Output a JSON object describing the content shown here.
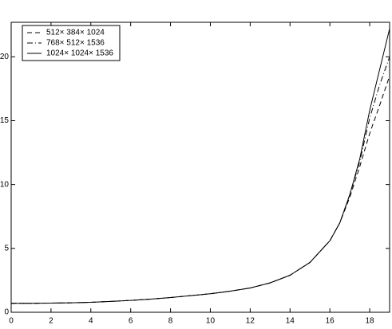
{
  "chart_data": {
    "type": "line",
    "x": [
      0,
      1,
      2,
      3,
      4,
      5,
      6,
      7,
      8,
      9,
      10,
      11,
      12,
      13,
      14,
      15,
      16,
      16.5,
      17,
      17.5,
      18,
      18.5,
      19
    ],
    "series": [
      {
        "name": "512× 384× 1024",
        "color": "#000000",
        "style": "dashed",
        "values": [
          0.7,
          0.7,
          0.72,
          0.74,
          0.78,
          0.85,
          0.93,
          1.03,
          1.15,
          1.3,
          1.45,
          1.65,
          1.9,
          2.3,
          2.9,
          3.9,
          5.6,
          7.0,
          9.0,
          11.4,
          14.0,
          16.2,
          18.5
        ]
      },
      {
        "name": "768× 512× 1536",
        "color": "#000000",
        "style": "dashdot",
        "values": [
          0.7,
          0.7,
          0.72,
          0.74,
          0.78,
          0.85,
          0.93,
          1.03,
          1.15,
          1.3,
          1.45,
          1.65,
          1.9,
          2.3,
          2.9,
          3.9,
          5.6,
          7.0,
          9.2,
          11.8,
          15.2,
          17.8,
          20.0
        ]
      },
      {
        "name": "1024× 1024× 1536",
        "color": "#000000",
        "style": "solid",
        "values": [
          0.7,
          0.7,
          0.72,
          0.74,
          0.78,
          0.85,
          0.93,
          1.03,
          1.15,
          1.3,
          1.45,
          1.65,
          1.9,
          2.3,
          2.9,
          3.9,
          5.6,
          7.0,
          9.2,
          12.0,
          15.8,
          19.0,
          22.2
        ]
      }
    ],
    "xlim": [
      0,
      19
    ],
    "ylim": [
      0,
      22.7
    ],
    "xticks": [
      0,
      2,
      4,
      6,
      8,
      10,
      12,
      14,
      16,
      18
    ],
    "yticks": [
      0,
      5,
      10,
      15,
      20
    ],
    "legend": "upper-left"
  }
}
